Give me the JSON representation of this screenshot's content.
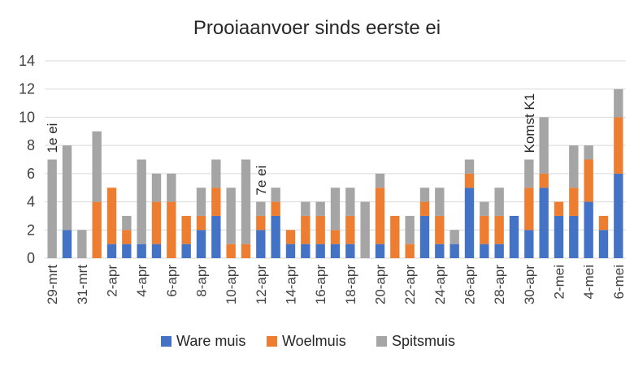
{
  "chart_data": {
    "type": "bar",
    "stacked": true,
    "title": "Prooiaanvoer sinds eerste ei",
    "ylim": [
      0,
      14
    ],
    "yticks": [
      0,
      2,
      4,
      6,
      8,
      10,
      12,
      14
    ],
    "grid": true,
    "legend_position": "bottom",
    "categories": [
      "29-mrt",
      "30-mrt",
      "31-mrt",
      "1-apr",
      "2-apr",
      "3-apr",
      "4-apr",
      "5-apr",
      "6-apr",
      "7-apr",
      "8-apr",
      "9-apr",
      "10-apr",
      "11-apr",
      "12-apr",
      "13-apr",
      "14-apr",
      "15-apr",
      "16-apr",
      "17-apr",
      "18-apr",
      "19-apr",
      "20-apr",
      "21-apr",
      "22-apr",
      "23-apr",
      "24-apr",
      "25-apr",
      "26-apr",
      "27-apr",
      "28-apr",
      "29-apr",
      "30-apr",
      "1-mei",
      "2-mei",
      "3-mei",
      "4-mei",
      "5-mei",
      "6-mei"
    ],
    "tick_labels": [
      "29-mrt",
      "",
      "31-mrt",
      "",
      "2-apr",
      "",
      "4-apr",
      "",
      "6-apr",
      "",
      "8-apr",
      "",
      "10-apr",
      "",
      "12-apr",
      "",
      "14-apr",
      "",
      "16-apr",
      "",
      "18-apr",
      "",
      "20-apr",
      "",
      "22-apr",
      "",
      "24-apr",
      "",
      "26-apr",
      "",
      "28-apr",
      "",
      "30-apr",
      "",
      "2-mei",
      "",
      "4-mei",
      "",
      "6-mei"
    ],
    "series": [
      {
        "name": "Ware muis",
        "color": "#4472c4",
        "values": [
          0,
          2,
          0,
          0,
          1,
          1,
          1,
          1,
          0,
          1,
          2,
          3,
          0,
          0,
          2,
          3,
          1,
          1,
          1,
          1,
          1,
          0,
          1,
          0,
          0,
          3,
          1,
          1,
          5,
          1,
          1,
          3,
          2,
          5,
          3,
          3,
          4,
          2,
          6
        ]
      },
      {
        "name": "Woelmuis",
        "color": "#ed7d31",
        "values": [
          0,
          0,
          0,
          4,
          4,
          1,
          0,
          3,
          4,
          2,
          1,
          2,
          1,
          1,
          1,
          1,
          1,
          2,
          2,
          1,
          2,
          0,
          4,
          3,
          1,
          1,
          2,
          0,
          1,
          2,
          2,
          0,
          3,
          1,
          1,
          2,
          3,
          1,
          4
        ]
      },
      {
        "name": "Spitsmuis",
        "color": "#a5a5a5",
        "values": [
          7,
          6,
          2,
          5,
          0,
          1,
          6,
          2,
          2,
          0,
          2,
          2,
          4,
          6,
          1,
          1,
          0,
          1,
          1,
          3,
          2,
          4,
          1,
          0,
          2,
          1,
          2,
          1,
          1,
          1,
          2,
          0,
          2,
          4,
          0,
          3,
          1,
          0,
          2
        ]
      }
    ],
    "annotations": [
      {
        "text": "1e ei",
        "category": "29-mrt"
      },
      {
        "text": "7e ei",
        "category": "12-apr"
      },
      {
        "text": "Komst K1",
        "category": "30-apr"
      }
    ]
  }
}
